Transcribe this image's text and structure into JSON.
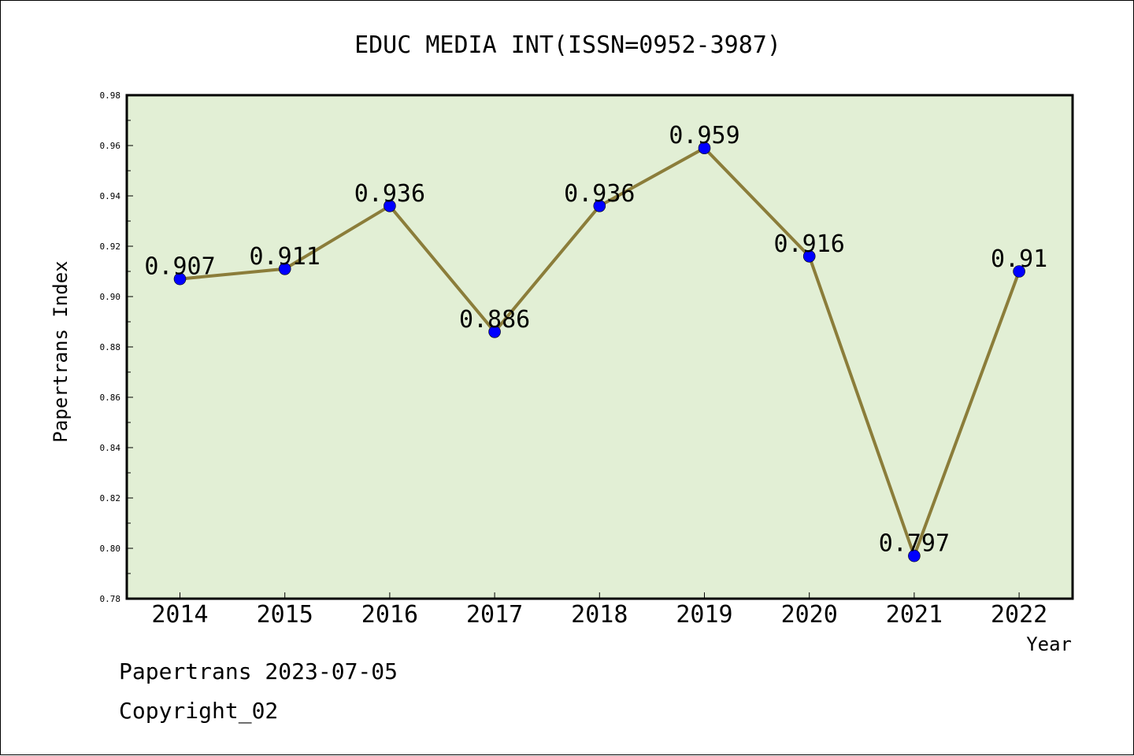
{
  "chart_data": {
    "type": "line",
    "title": "EDUC MEDIA INT(ISSN=0952-3987)",
    "xlabel": "Year",
    "ylabel": "Papertrans Index",
    "categories": [
      "2014",
      "2015",
      "2016",
      "2017",
      "2018",
      "2019",
      "2020",
      "2021",
      "2022"
    ],
    "values": [
      0.907,
      0.911,
      0.936,
      0.886,
      0.936,
      0.959,
      0.916,
      0.797,
      0.91
    ],
    "data_labels": [
      "0.907",
      "0.911",
      "0.936",
      "0.886",
      "0.936",
      "0.959",
      "0.916",
      "0.797",
      "0.91"
    ],
    "ylim": [
      0.78,
      0.98
    ],
    "yticks": [
      "0.78",
      "0.80",
      "0.82",
      "0.84",
      "0.86",
      "0.88",
      "0.90",
      "0.92",
      "0.94",
      "0.96",
      "0.98"
    ],
    "grid": false,
    "legend": "none",
    "colors": {
      "plot_background": "#e2efd5",
      "line": "#8b7d3a",
      "marker": "#0000ff"
    }
  },
  "footer": {
    "line1": "Papertrans 2023-07-05",
    "line2": "Copyright_02"
  }
}
